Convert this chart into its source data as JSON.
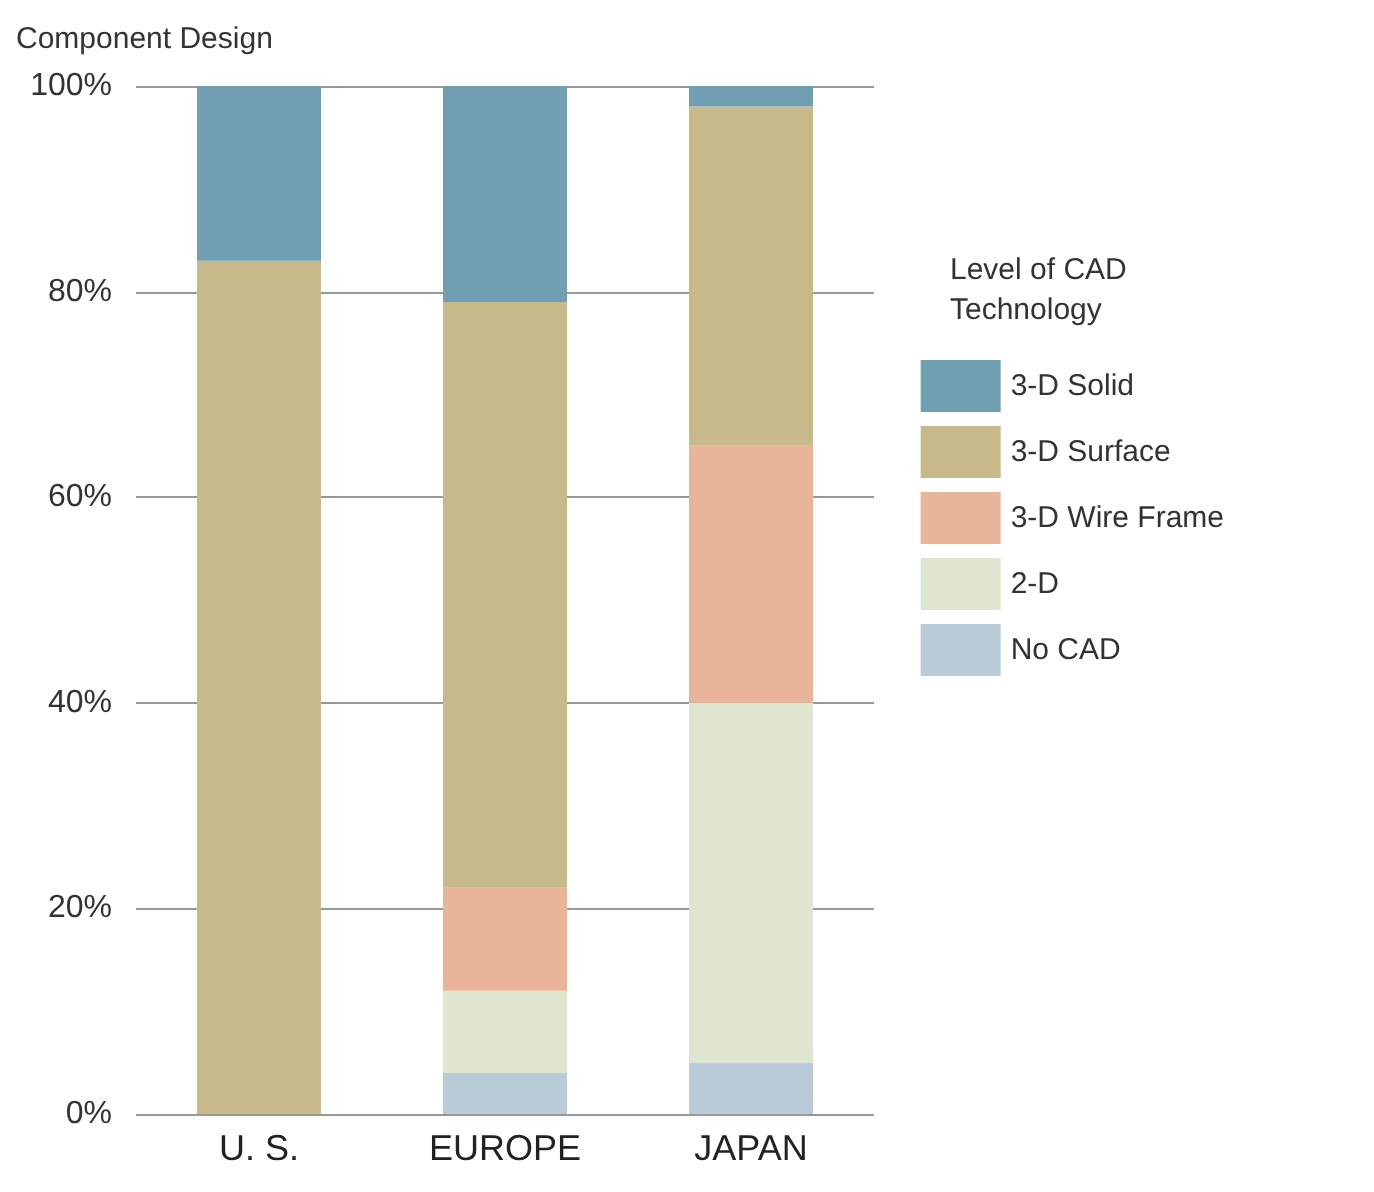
{
  "chart_data": {
    "type": "bar",
    "stacked": true,
    "ylabel": "Component Design",
    "legend_title": "Level of CAD Technology",
    "categories": [
      "U. S.",
      "EUROPE",
      "JAPAN"
    ],
    "series": [
      {
        "name": "No CAD",
        "color": "#b9cbd9",
        "values": [
          0,
          4,
          5
        ]
      },
      {
        "name": "2-D",
        "color": "#dfe6cf",
        "values": [
          0,
          8,
          35
        ]
      },
      {
        "name": "3-D Wire Frame",
        "color": "#e8b49a",
        "values": [
          0,
          10,
          25
        ]
      },
      {
        "name": "3-D Surface",
        "color": "#c8b98a",
        "values": [
          83,
          57,
          33
        ]
      },
      {
        "name": "3-D Solid",
        "color": "#6f9fb0",
        "values": [
          17,
          21,
          2
        ]
      }
    ],
    "ylim": [
      0,
      100
    ],
    "yticks": [
      {
        "value": 0,
        "label": "0%"
      },
      {
        "value": 20,
        "label": "20%"
      },
      {
        "value": 40,
        "label": "40%"
      },
      {
        "value": 60,
        "label": "60%"
      },
      {
        "value": 80,
        "label": "80%"
      },
      {
        "value": 100,
        "label": "100%"
      }
    ],
    "grid": "y",
    "legend": "right"
  }
}
